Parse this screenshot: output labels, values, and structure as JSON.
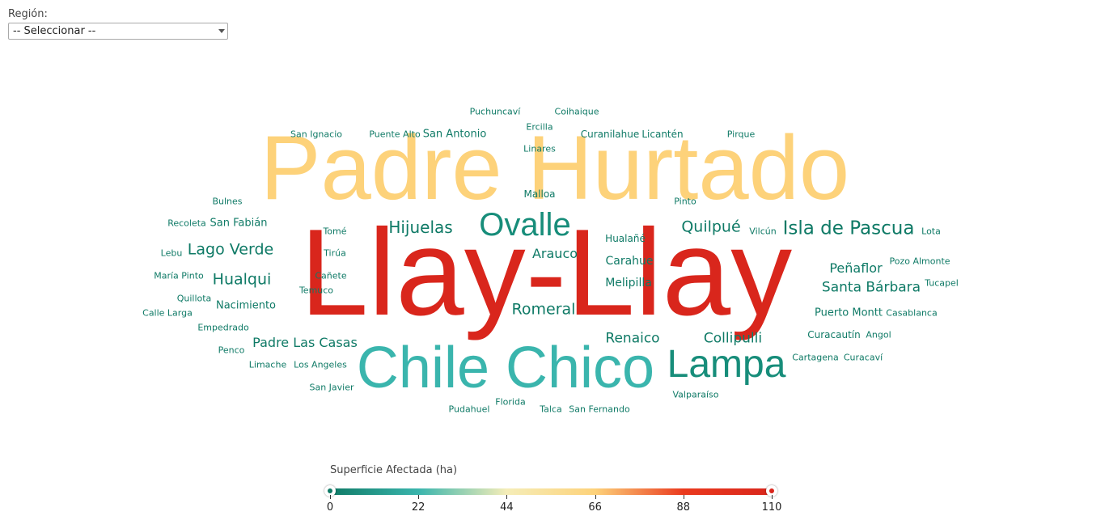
{
  "filter": {
    "label": "Región:",
    "selected": "-- Seleccionar --"
  },
  "legend": {
    "title": "Superficie Afectada (ha)",
    "ticks": [
      "0",
      "22",
      "44",
      "66",
      "88",
      "110"
    ],
    "min": 0,
    "max": 110,
    "colors": [
      "#0f7a66",
      "#3ab5ad",
      "#f5edb8",
      "#fdd27a",
      "#ea3a1e",
      "#d9261c"
    ]
  },
  "words": [
    {
      "text": "Padre Hurtado",
      "color": "#fdd27a"
    },
    {
      "text": "Llay-Llay",
      "color": "#d9261c"
    },
    {
      "text": "Chile Chico",
      "color": "#3ab5ad"
    },
    {
      "text": "Lampa",
      "color": "#178d7a"
    },
    {
      "text": "Ovalle",
      "color": "#178d7a"
    },
    {
      "text": "Isla de Pascua",
      "color": "#0f7a66"
    },
    {
      "text": "Hijuelas",
      "color": "#0f7a66"
    },
    {
      "text": "Quilpué",
      "color": "#0f7a66"
    },
    {
      "text": "Lago Verde",
      "color": "#0f7a66"
    },
    {
      "text": "Hualqui",
      "color": "#0f7a66"
    },
    {
      "text": "Romeral",
      "color": "#0f7a66"
    },
    {
      "text": "Santa Bárbara",
      "color": "#0f7a66"
    },
    {
      "text": "Collipulli",
      "color": "#0f7a66"
    },
    {
      "text": "Renaico",
      "color": "#0f7a66"
    },
    {
      "text": "Padre Las Casas",
      "color": "#0f7a66"
    },
    {
      "text": "Arauco",
      "color": "#0f7a66"
    },
    {
      "text": "Peñaflor",
      "color": "#0f7a66"
    },
    {
      "text": "Carahue",
      "color": "#0f7a66"
    },
    {
      "text": "Melipilla",
      "color": "#0f7a66"
    },
    {
      "text": "Puerto Montt",
      "color": "#0f7a66"
    },
    {
      "text": "San Fabián",
      "color": "#0f7a66"
    },
    {
      "text": "Nacimiento",
      "color": "#0f7a66"
    },
    {
      "text": "Hualañé",
      "color": "#0f7a66"
    },
    {
      "text": "Malloa",
      "color": "#0f7a66"
    },
    {
      "text": "San Antonio",
      "color": "#0f7a66"
    },
    {
      "text": "Curanilahue",
      "color": "#0f7a66"
    },
    {
      "text": "Licantén",
      "color": "#0f7a66"
    },
    {
      "text": "Curacautín",
      "color": "#0f7a66"
    },
    {
      "text": "Puchuncaví",
      "color": "#0f7a66"
    },
    {
      "text": "Coihaique",
      "color": "#0f7a66"
    },
    {
      "text": "Ercilla",
      "color": "#0f7a66"
    },
    {
      "text": "Linares",
      "color": "#0f7a66"
    },
    {
      "text": "San Ignacio",
      "color": "#0f7a66"
    },
    {
      "text": "Puente Alto",
      "color": "#0f7a66"
    },
    {
      "text": "Pirque",
      "color": "#0f7a66"
    },
    {
      "text": "Bulnes",
      "color": "#0f7a66"
    },
    {
      "text": "Pinto",
      "color": "#0f7a66"
    },
    {
      "text": "Recoleta",
      "color": "#0f7a66"
    },
    {
      "text": "Tomé",
      "color": "#0f7a66"
    },
    {
      "text": "Vilcún",
      "color": "#0f7a66"
    },
    {
      "text": "Lota",
      "color": "#0f7a66"
    },
    {
      "text": "Lebu",
      "color": "#0f7a66"
    },
    {
      "text": "Tirúa",
      "color": "#0f7a66"
    },
    {
      "text": "Pozo Almonte",
      "color": "#0f7a66"
    },
    {
      "text": "María Pinto",
      "color": "#0f7a66"
    },
    {
      "text": "Cañete",
      "color": "#0f7a66"
    },
    {
      "text": "Tucapel",
      "color": "#0f7a66"
    },
    {
      "text": "Temuco",
      "color": "#0f7a66"
    },
    {
      "text": "Quillota",
      "color": "#0f7a66"
    },
    {
      "text": "Calle Larga",
      "color": "#0f7a66"
    },
    {
      "text": "Casablanca",
      "color": "#0f7a66"
    },
    {
      "text": "Empedrado",
      "color": "#0f7a66"
    },
    {
      "text": "Angol",
      "color": "#0f7a66"
    },
    {
      "text": "Penco",
      "color": "#0f7a66"
    },
    {
      "text": "Limache",
      "color": "#0f7a66"
    },
    {
      "text": "Los Angeles",
      "color": "#0f7a66"
    },
    {
      "text": "Cartagena",
      "color": "#0f7a66"
    },
    {
      "text": "Curacaví",
      "color": "#0f7a66"
    },
    {
      "text": "San Javier",
      "color": "#0f7a66"
    },
    {
      "text": "Valparaíso",
      "color": "#0f7a66"
    },
    {
      "text": "Florida",
      "color": "#0f7a66"
    },
    {
      "text": "Pudahuel",
      "color": "#0f7a66"
    },
    {
      "text": "Talca",
      "color": "#0f7a66"
    },
    {
      "text": "San Fernando",
      "color": "#0f7a66"
    }
  ]
}
